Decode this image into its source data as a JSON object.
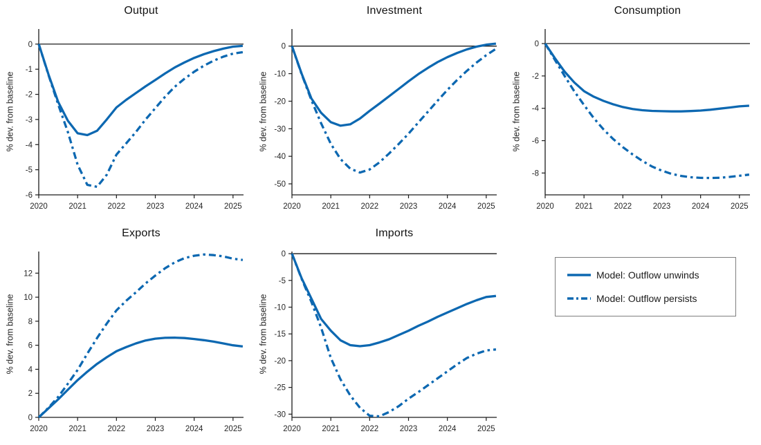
{
  "colors": {
    "line_blue": "#0d68b1",
    "zero_line": "#000000",
    "spine": "#1a1a1a",
    "tick_label": "#262626",
    "legend_border": "#7d7d7d"
  },
  "legend": {
    "items": [
      {
        "label": "Model: Outflow unwinds",
        "style": "solid"
      },
      {
        "label": "Model: Outflow persists",
        "style": "dashdot"
      }
    ]
  },
  "chart_data": [
    {
      "type": "line",
      "title": "Output",
      "ylabel": "% dev. from baseline",
      "xlim": [
        2020,
        2025.27
      ],
      "ylim": [
        -6,
        0.6
      ],
      "xticks": [
        2020,
        2021,
        2022,
        2023,
        2024,
        2025
      ],
      "yticks": [
        0,
        -1,
        -2,
        -3,
        -4,
        -5,
        -6
      ],
      "x": [
        2020,
        2020.25,
        2020.5,
        2020.75,
        2021,
        2021.25,
        2021.5,
        2021.75,
        2022,
        2022.25,
        2022.5,
        2022.75,
        2023,
        2023.25,
        2023.5,
        2023.75,
        2024,
        2024.25,
        2024.5,
        2024.75,
        2025,
        2025.25
      ],
      "series": [
        {
          "name": "Model: Outflow unwinds",
          "style": "solid",
          "values": [
            0,
            -1.2,
            -2.3,
            -3.05,
            -3.55,
            -3.62,
            -3.45,
            -3.0,
            -2.52,
            -2.22,
            -1.95,
            -1.68,
            -1.43,
            -1.17,
            -0.93,
            -0.73,
            -0.55,
            -0.4,
            -0.28,
            -0.18,
            -0.1,
            -0.07
          ]
        },
        {
          "name": "Model: Outflow persists",
          "style": "dashdot",
          "values": [
            0,
            -1.22,
            -2.4,
            -3.5,
            -4.8,
            -5.6,
            -5.68,
            -5.2,
            -4.4,
            -3.95,
            -3.5,
            -3.0,
            -2.55,
            -2.1,
            -1.7,
            -1.38,
            -1.1,
            -0.86,
            -0.66,
            -0.5,
            -0.38,
            -0.32
          ]
        }
      ]
    },
    {
      "type": "line",
      "title": "Investment",
      "ylabel": "% dev. from baseline",
      "xlim": [
        2020,
        2025.27
      ],
      "ylim": [
        -54,
        6.2
      ],
      "xticks": [
        2020,
        2021,
        2022,
        2023,
        2024,
        2025
      ],
      "yticks": [
        0,
        -10,
        -20,
        -30,
        -40,
        -50
      ],
      "x": [
        2020,
        2020.25,
        2020.5,
        2020.75,
        2021,
        2021.25,
        2021.5,
        2021.75,
        2022,
        2022.25,
        2022.5,
        2022.75,
        2023,
        2023.25,
        2023.5,
        2023.75,
        2024,
        2024.25,
        2024.5,
        2024.75,
        2025,
        2025.25
      ],
      "series": [
        {
          "name": "Model: Outflow unwinds",
          "style": "solid",
          "values": [
            0,
            -10,
            -19,
            -24.2,
            -27.6,
            -28.9,
            -28.4,
            -26.3,
            -23.5,
            -20.9,
            -18.2,
            -15.5,
            -12.8,
            -10.2,
            -7.9,
            -5.8,
            -4.0,
            -2.5,
            -1.2,
            -0.2,
            0.5,
            0.9
          ]
        },
        {
          "name": "Model: Outflow persists",
          "style": "dashdot",
          "values": [
            0,
            -10.2,
            -19.6,
            -28,
            -35.5,
            -41,
            -44.5,
            -45.9,
            -44.8,
            -42.2,
            -39,
            -35.5,
            -31.8,
            -27.8,
            -23.8,
            -19.8,
            -15.9,
            -12.3,
            -9.0,
            -6.0,
            -3.3,
            -1.0
          ]
        }
      ]
    },
    {
      "type": "line",
      "title": "Consumption",
      "ylabel": "% dev. from baseline",
      "xlim": [
        2020,
        2025.27
      ],
      "ylim": [
        -9.35,
        0.9
      ],
      "xticks": [
        2020,
        2021,
        2022,
        2023,
        2024,
        2025
      ],
      "yticks": [
        0,
        -2,
        -4,
        -6,
        -8
      ],
      "x": [
        2020,
        2020.25,
        2020.5,
        2020.75,
        2021,
        2021.25,
        2021.5,
        2021.75,
        2022,
        2022.25,
        2022.5,
        2022.75,
        2023,
        2023.25,
        2023.5,
        2023.75,
        2024,
        2024.25,
        2024.5,
        2024.75,
        2025,
        2025.25
      ],
      "series": [
        {
          "name": "Model: Outflow unwinds",
          "style": "solid",
          "values": [
            0,
            -0.9,
            -1.73,
            -2.4,
            -2.94,
            -3.28,
            -3.54,
            -3.75,
            -3.92,
            -4.04,
            -4.12,
            -4.16,
            -4.18,
            -4.19,
            -4.19,
            -4.17,
            -4.14,
            -4.09,
            -4.02,
            -3.95,
            -3.88,
            -3.84
          ]
        },
        {
          "name": "Model: Outflow persists",
          "style": "dashdot",
          "values": [
            0,
            -1.0,
            -2.0,
            -2.95,
            -3.8,
            -4.6,
            -5.3,
            -5.9,
            -6.4,
            -6.85,
            -7.25,
            -7.6,
            -7.85,
            -8.05,
            -8.18,
            -8.26,
            -8.3,
            -8.31,
            -8.29,
            -8.24,
            -8.17,
            -8.1
          ]
        }
      ]
    },
    {
      "type": "line",
      "title": "Exports",
      "ylabel": "% dev. from baseline",
      "xlim": [
        2020,
        2025.27
      ],
      "ylim": [
        0,
        13.8
      ],
      "xticks": [
        2020,
        2021,
        2022,
        2023,
        2024,
        2025
      ],
      "yticks": [
        12,
        10,
        8,
        6,
        4,
        2,
        0
      ],
      "x": [
        2020,
        2020.25,
        2020.5,
        2020.75,
        2021,
        2021.25,
        2021.5,
        2021.75,
        2022,
        2022.25,
        2022.5,
        2022.75,
        2023,
        2023.25,
        2023.5,
        2023.75,
        2024,
        2024.25,
        2024.5,
        2024.75,
        2025,
        2025.25
      ],
      "series": [
        {
          "name": "Model: Outflow unwinds",
          "style": "solid",
          "values": [
            0,
            0.75,
            1.5,
            2.3,
            3.1,
            3.8,
            4.45,
            5.0,
            5.5,
            5.85,
            6.15,
            6.4,
            6.55,
            6.62,
            6.63,
            6.6,
            6.52,
            6.42,
            6.3,
            6.15,
            6.0,
            5.9
          ]
        },
        {
          "name": "Model: Outflow persists",
          "style": "dashdot",
          "values": [
            0,
            0.8,
            1.7,
            2.8,
            3.95,
            5.3,
            6.6,
            7.8,
            8.9,
            9.7,
            10.4,
            11.15,
            11.8,
            12.4,
            12.9,
            13.25,
            13.45,
            13.55,
            13.5,
            13.4,
            13.2,
            13.1
          ]
        }
      ]
    },
    {
      "type": "line",
      "title": "Imports",
      "ylabel": "% dev. from baseline",
      "xlim": [
        2020,
        2025.27
      ],
      "ylim": [
        -30.6,
        0.4
      ],
      "xticks": [
        2020,
        2021,
        2022,
        2023,
        2024,
        2025
      ],
      "yticks": [
        0,
        -5,
        -10,
        -15,
        -20,
        -25,
        -30
      ],
      "x": [
        2020,
        2020.25,
        2020.5,
        2020.75,
        2021,
        2021.25,
        2021.5,
        2021.75,
        2022,
        2022.25,
        2022.5,
        2022.75,
        2023,
        2023.25,
        2023.5,
        2023.75,
        2024,
        2024.25,
        2024.5,
        2024.75,
        2025,
        2025.25
      ],
      "series": [
        {
          "name": "Model: Outflow unwinds",
          "style": "solid",
          "values": [
            0,
            -4.6,
            -8.4,
            -12.2,
            -14.4,
            -16.2,
            -17.1,
            -17.3,
            -17.1,
            -16.6,
            -16.0,
            -15.2,
            -14.4,
            -13.5,
            -12.7,
            -11.8,
            -11.0,
            -10.2,
            -9.4,
            -8.7,
            -8.1,
            -7.9
          ]
        },
        {
          "name": "Model: Outflow persists",
          "style": "dashdot",
          "values": [
            0,
            -4.7,
            -9.0,
            -13.8,
            -19.5,
            -23.5,
            -26.5,
            -28.8,
            -30.3,
            -30.4,
            -29.6,
            -28.5,
            -27.1,
            -25.9,
            -24.6,
            -23.3,
            -22.0,
            -20.7,
            -19.5,
            -18.7,
            -18.1,
            -17.9
          ]
        }
      ]
    }
  ]
}
